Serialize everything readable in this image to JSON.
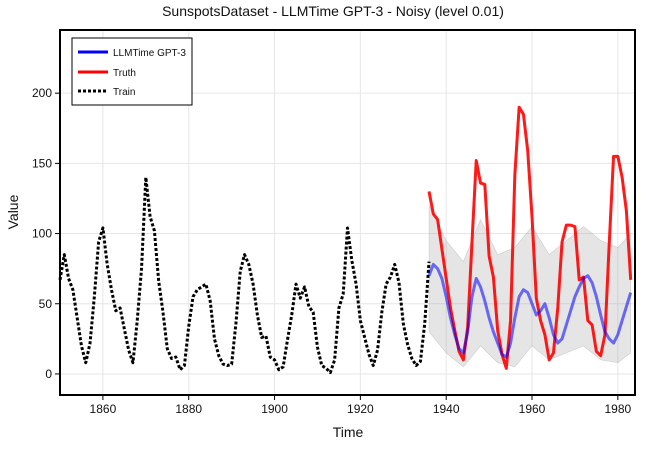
{
  "chart_data": {
    "type": "line",
    "title": "SunspotsDataset - LLMTime GPT-3 - Noisy (level 0.01)",
    "xlabel": "Time",
    "ylabel": "Value",
    "xlim": [
      1850,
      1984
    ],
    "ylim": [
      -15,
      245
    ],
    "xticks": [
      1860,
      1880,
      1900,
      1920,
      1940,
      1960,
      1980
    ],
    "yticks": [
      0,
      50,
      100,
      150,
      200
    ],
    "grid": true,
    "legend_position": "top-left",
    "series": [
      {
        "name": "Train",
        "color": "#000000",
        "style": "dotted",
        "points": [
          [
            1850,
            67
          ],
          [
            1851,
            85
          ],
          [
            1852,
            68
          ],
          [
            1853,
            60
          ],
          [
            1854,
            40
          ],
          [
            1855,
            20
          ],
          [
            1856,
            8
          ],
          [
            1857,
            22
          ],
          [
            1858,
            55
          ],
          [
            1859,
            94
          ],
          [
            1860,
            104
          ],
          [
            1861,
            78
          ],
          [
            1862,
            60
          ],
          [
            1863,
            45
          ],
          [
            1864,
            47
          ],
          [
            1865,
            32
          ],
          [
            1866,
            17
          ],
          [
            1867,
            8
          ],
          [
            1868,
            38
          ],
          [
            1869,
            75
          ],
          [
            1870,
            140
          ],
          [
            1871,
            112
          ],
          [
            1872,
            102
          ],
          [
            1873,
            66
          ],
          [
            1874,
            44
          ],
          [
            1875,
            18
          ],
          [
            1876,
            11
          ],
          [
            1877,
            12
          ],
          [
            1878,
            3
          ],
          [
            1879,
            6
          ],
          [
            1880,
            34
          ],
          [
            1881,
            55
          ],
          [
            1882,
            60
          ],
          [
            1883,
            62
          ],
          [
            1884,
            64
          ],
          [
            1885,
            52
          ],
          [
            1886,
            25
          ],
          [
            1887,
            13
          ],
          [
            1888,
            7
          ],
          [
            1889,
            6
          ],
          [
            1890,
            7
          ],
          [
            1891,
            36
          ],
          [
            1892,
            73
          ],
          [
            1893,
            85
          ],
          [
            1894,
            78
          ],
          [
            1895,
            64
          ],
          [
            1896,
            42
          ],
          [
            1897,
            26
          ],
          [
            1898,
            27
          ],
          [
            1899,
            12
          ],
          [
            1900,
            10
          ],
          [
            1901,
            3
          ],
          [
            1902,
            5
          ],
          [
            1903,
            24
          ],
          [
            1904,
            42
          ],
          [
            1905,
            64
          ],
          [
            1906,
            54
          ],
          [
            1907,
            62
          ],
          [
            1908,
            48
          ],
          [
            1909,
            44
          ],
          [
            1910,
            19
          ],
          [
            1911,
            6
          ],
          [
            1912,
            4
          ],
          [
            1913,
            1
          ],
          [
            1914,
            10
          ],
          [
            1915,
            47
          ],
          [
            1916,
            57
          ],
          [
            1917,
            104
          ],
          [
            1918,
            81
          ],
          [
            1919,
            64
          ],
          [
            1920,
            38
          ],
          [
            1921,
            26
          ],
          [
            1922,
            14
          ],
          [
            1923,
            6
          ],
          [
            1924,
            17
          ],
          [
            1925,
            44
          ],
          [
            1926,
            64
          ],
          [
            1927,
            69
          ],
          [
            1928,
            78
          ],
          [
            1929,
            65
          ],
          [
            1930,
            36
          ],
          [
            1931,
            21
          ],
          [
            1932,
            11
          ],
          [
            1933,
            6
          ],
          [
            1934,
            9
          ],
          [
            1935,
            36
          ],
          [
            1936,
            80
          ]
        ]
      },
      {
        "name": "Truth",
        "color": "#ff0000",
        "style": "solid",
        "points": [
          [
            1936,
            130
          ],
          [
            1937,
            114
          ],
          [
            1938,
            110
          ],
          [
            1939,
            89
          ],
          [
            1940,
            68
          ],
          [
            1941,
            47
          ],
          [
            1942,
            31
          ],
          [
            1943,
            16
          ],
          [
            1944,
            10
          ],
          [
            1945,
            33
          ],
          [
            1946,
            93
          ],
          [
            1947,
            152
          ],
          [
            1948,
            136
          ],
          [
            1949,
            135
          ],
          [
            1950,
            84
          ],
          [
            1951,
            69
          ],
          [
            1952,
            31
          ],
          [
            1953,
            14
          ],
          [
            1954,
            4
          ],
          [
            1955,
            38
          ],
          [
            1956,
            142
          ],
          [
            1957,
            190
          ],
          [
            1958,
            185
          ],
          [
            1959,
            159
          ],
          [
            1960,
            112
          ],
          [
            1961,
            54
          ],
          [
            1962,
            38
          ],
          [
            1963,
            28
          ],
          [
            1964,
            10
          ],
          [
            1965,
            15
          ],
          [
            1966,
            47
          ],
          [
            1967,
            94
          ],
          [
            1968,
            106
          ],
          [
            1969,
            106
          ],
          [
            1970,
            105
          ],
          [
            1971,
            67
          ],
          [
            1972,
            69
          ],
          [
            1973,
            38
          ],
          [
            1974,
            35
          ],
          [
            1975,
            16
          ],
          [
            1976,
            13
          ],
          [
            1977,
            28
          ],
          [
            1978,
            93
          ],
          [
            1979,
            155
          ],
          [
            1980,
            155
          ],
          [
            1981,
            140
          ],
          [
            1982,
            116
          ],
          [
            1983,
            67
          ]
        ]
      },
      {
        "name": "LLMTime GPT-3",
        "color": "#0000ff",
        "style": "solid",
        "points": [
          [
            1936,
            70
          ],
          [
            1937,
            78
          ],
          [
            1938,
            75
          ],
          [
            1939,
            68
          ],
          [
            1940,
            55
          ],
          [
            1941,
            40
          ],
          [
            1942,
            28
          ],
          [
            1943,
            18
          ],
          [
            1944,
            15
          ],
          [
            1945,
            30
          ],
          [
            1946,
            55
          ],
          [
            1947,
            68
          ],
          [
            1948,
            62
          ],
          [
            1949,
            52
          ],
          [
            1950,
            40
          ],
          [
            1951,
            30
          ],
          [
            1952,
            22
          ],
          [
            1953,
            14
          ],
          [
            1954,
            12
          ],
          [
            1955,
            22
          ],
          [
            1956,
            40
          ],
          [
            1957,
            55
          ],
          [
            1958,
            60
          ],
          [
            1959,
            58
          ],
          [
            1960,
            50
          ],
          [
            1961,
            42
          ],
          [
            1962,
            45
          ],
          [
            1963,
            50
          ],
          [
            1964,
            40
          ],
          [
            1965,
            28
          ],
          [
            1966,
            22
          ],
          [
            1967,
            25
          ],
          [
            1968,
            35
          ],
          [
            1969,
            45
          ],
          [
            1970,
            55
          ],
          [
            1971,
            62
          ],
          [
            1972,
            68
          ],
          [
            1973,
            70
          ],
          [
            1974,
            65
          ],
          [
            1975,
            55
          ],
          [
            1976,
            42
          ],
          [
            1977,
            30
          ],
          [
            1978,
            25
          ],
          [
            1979,
            22
          ],
          [
            1980,
            28
          ],
          [
            1981,
            38
          ],
          [
            1982,
            48
          ],
          [
            1983,
            58
          ]
        ]
      }
    ],
    "band": {
      "color": "#999999",
      "points": [
        [
          1936,
          30,
          120
        ],
        [
          1940,
          15,
          95
        ],
        [
          1944,
          5,
          80
        ],
        [
          1948,
          20,
          110
        ],
        [
          1952,
          8,
          85
        ],
        [
          1956,
          5,
          90
        ],
        [
          1960,
          20,
          105
        ],
        [
          1964,
          10,
          85
        ],
        [
          1968,
          15,
          95
        ],
        [
          1972,
          20,
          105
        ],
        [
          1976,
          10,
          95
        ],
        [
          1980,
          8,
          90
        ],
        [
          1983,
          15,
          100
        ]
      ]
    }
  }
}
